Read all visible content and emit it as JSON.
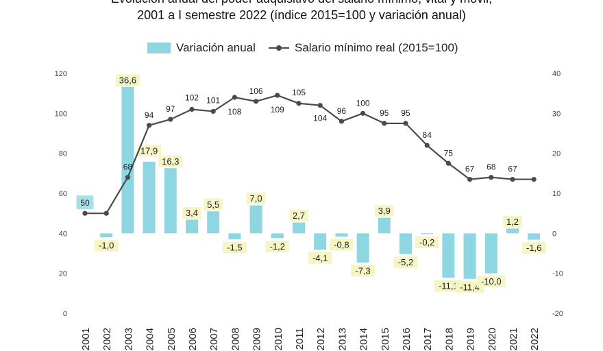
{
  "title": {
    "line1": "Evolución anual del poder adquisitivo del salario mínimo, vital y móvil,",
    "line2": "2001 a I semestre 2022 (índice 2015=100 y variación anual)"
  },
  "colors": {
    "bar": "#8fd6e3",
    "line": "#4a4a4a",
    "label_bg_yellow": "#f5f5c6",
    "label_bg_blue": "#a9dfe9"
  },
  "chart_data": {
    "type": "bar",
    "categories": [
      "2001",
      "2002",
      "2003",
      "2004",
      "2005",
      "2006",
      "2007",
      "2008",
      "2009",
      "2010",
      "2011",
      "2012",
      "2013",
      "2014",
      "2015",
      "2016",
      "2017",
      "2018",
      "2019",
      "2020",
      "2021",
      "2022"
    ],
    "series": [
      {
        "name": "Variación anual",
        "type": "bar",
        "axis": "right",
        "values": [
          null,
          -1.0,
          36.6,
          17.9,
          16.3,
          3.4,
          5.5,
          -1.5,
          7.0,
          -1.2,
          2.7,
          -4.1,
          -0.8,
          -7.3,
          3.9,
          -5.2,
          -0.2,
          -11.1,
          -11.4,
          -10.0,
          1.2,
          -1.6
        ],
        "labels": [
          "",
          "-1,0",
          "36,6",
          "17,9",
          "16,3",
          "3,4",
          "5,5",
          "-1,5",
          "7,0",
          "-1,2",
          "2,7",
          "-4,1",
          "-0,8",
          "-7,3",
          "3,9",
          "-5,2",
          "-0,2",
          "-11,1",
          "-11,4",
          "-10,0",
          "1,2",
          "-1,6"
        ]
      },
      {
        "name": "Salario mínimo real (2015=100)",
        "type": "line",
        "axis": "left",
        "values": [
          50,
          50,
          68,
          94,
          97,
          102,
          101,
          108,
          106,
          109,
          105,
          104,
          96,
          100,
          95,
          95,
          84,
          75,
          67,
          68,
          67,
          67
        ],
        "shown_values": [
          50,
          68,
          94,
          97,
          102,
          101,
          108,
          106,
          109,
          105,
          104,
          96,
          100,
          95,
          95,
          84,
          75,
          67,
          68,
          67
        ],
        "highlighted": [
          "50",
          "100",
          "75",
          "67"
        ]
      }
    ],
    "left_axis": {
      "ylim": [
        0,
        120
      ],
      "ticks": [
        "0",
        "20",
        "40",
        "60",
        "80",
        "100",
        "120"
      ]
    },
    "right_axis": {
      "ylim": [
        -20,
        40
      ],
      "ticks": [
        "-20",
        "-10",
        "0",
        "10",
        "20",
        "30",
        "40"
      ]
    },
    "grid": false,
    "legend_position": "top-center"
  }
}
